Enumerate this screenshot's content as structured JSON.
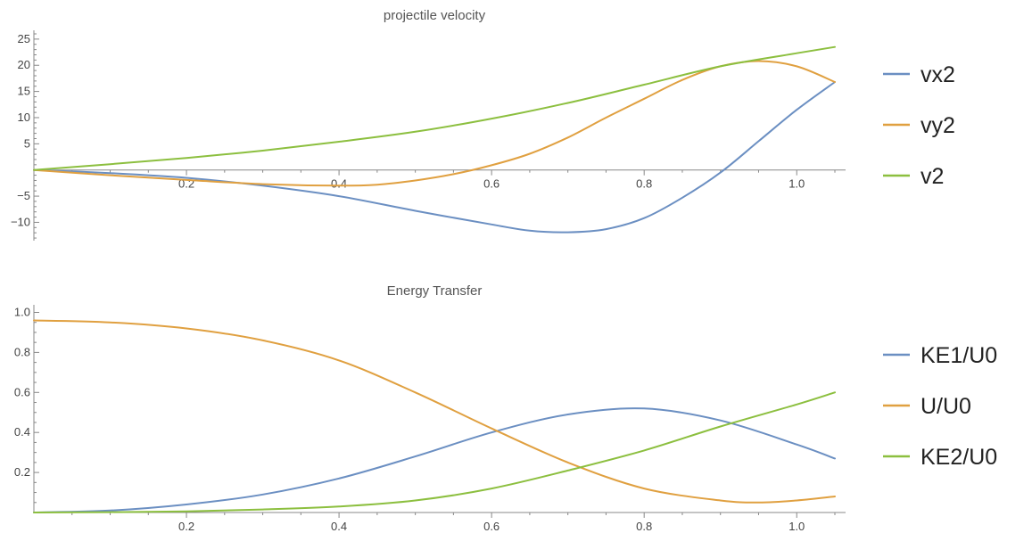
{
  "chart_data": [
    {
      "type": "line",
      "title": "projectile velocity",
      "xlim": [
        0,
        1.05
      ],
      "ylim": [
        -13.5,
        26
      ],
      "xticks": [
        0.2,
        0.4,
        0.6,
        0.8,
        1.0
      ],
      "xtick_labels": [
        "0.2",
        "0.4",
        "0.6",
        "0.8",
        "1.0"
      ],
      "yticks": [
        25,
        20,
        15,
        10,
        5,
        -5,
        -10
      ],
      "ytick_labels": [
        "25",
        "20",
        "15",
        "10",
        "5",
        "−5",
        "−10"
      ],
      "legend_position": "right",
      "series": [
        {
          "name": "vx2",
          "color": "#6b8fc2",
          "x": [
            0,
            0.1,
            0.2,
            0.3,
            0.4,
            0.5,
            0.6,
            0.65,
            0.7,
            0.75,
            0.8,
            0.85,
            0.9,
            0.95,
            1.0,
            1.05
          ],
          "y": [
            0,
            -0.6,
            -1.5,
            -3.0,
            -5.0,
            -7.8,
            -10.4,
            -11.6,
            -11.9,
            -11.3,
            -9.2,
            -5.3,
            -0.5,
            5.5,
            11.5,
            16.8
          ]
        },
        {
          "name": "vy2",
          "color": "#e0a040",
          "x": [
            0,
            0.1,
            0.2,
            0.3,
            0.4,
            0.45,
            0.5,
            0.55,
            0.6,
            0.65,
            0.7,
            0.75,
            0.8,
            0.85,
            0.9,
            0.95,
            1.0,
            1.05
          ],
          "y": [
            0,
            -1.0,
            -1.9,
            -2.7,
            -3.0,
            -2.8,
            -2.0,
            -0.8,
            0.9,
            3.1,
            6.2,
            10.0,
            13.6,
            17.2,
            19.8,
            20.8,
            19.8,
            16.8
          ]
        },
        {
          "name": "v2",
          "color": "#8cbf3f",
          "x": [
            0,
            0.1,
            0.2,
            0.3,
            0.4,
            0.5,
            0.6,
            0.7,
            0.8,
            0.9,
            1.0,
            1.05
          ],
          "y": [
            0,
            1.1,
            2.3,
            3.7,
            5.4,
            7.3,
            9.8,
            12.8,
            16.3,
            19.8,
            22.3,
            23.5
          ]
        }
      ]
    },
    {
      "type": "line",
      "title": "Energy Transfer",
      "xlim": [
        0,
        1.05
      ],
      "ylim": [
        0,
        1.02
      ],
      "xticks": [
        0.2,
        0.4,
        0.6,
        0.8,
        1.0
      ],
      "xtick_labels": [
        "0.2",
        "0.4",
        "0.6",
        "0.8",
        "1.0"
      ],
      "yticks": [
        1.0,
        0.8,
        0.6,
        0.4,
        0.2
      ],
      "ytick_labels": [
        "1.0",
        "0.8",
        "0.6",
        "0.4",
        "0.2"
      ],
      "legend_position": "right",
      "series": [
        {
          "name": "KE1/U0",
          "color": "#6b8fc2",
          "x": [
            0,
            0.1,
            0.2,
            0.3,
            0.4,
            0.5,
            0.6,
            0.7,
            0.8,
            0.9,
            1.0,
            1.05
          ],
          "y": [
            0,
            0.01,
            0.04,
            0.09,
            0.17,
            0.28,
            0.4,
            0.49,
            0.52,
            0.46,
            0.34,
            0.27
          ]
        },
        {
          "name": "U/U0",
          "color": "#e0a040",
          "x": [
            0,
            0.1,
            0.2,
            0.3,
            0.4,
            0.5,
            0.6,
            0.7,
            0.8,
            0.9,
            0.95,
            1.0,
            1.05
          ],
          "y": [
            0.96,
            0.95,
            0.92,
            0.86,
            0.76,
            0.6,
            0.42,
            0.25,
            0.12,
            0.06,
            0.05,
            0.06,
            0.08
          ]
        },
        {
          "name": "KE2/U0",
          "color": "#8cbf3f",
          "x": [
            0,
            0.1,
            0.2,
            0.3,
            0.4,
            0.5,
            0.6,
            0.7,
            0.8,
            0.9,
            1.0,
            1.05
          ],
          "y": [
            0,
            0.002,
            0.006,
            0.015,
            0.03,
            0.06,
            0.12,
            0.21,
            0.31,
            0.43,
            0.54,
            0.6
          ]
        }
      ]
    }
  ]
}
